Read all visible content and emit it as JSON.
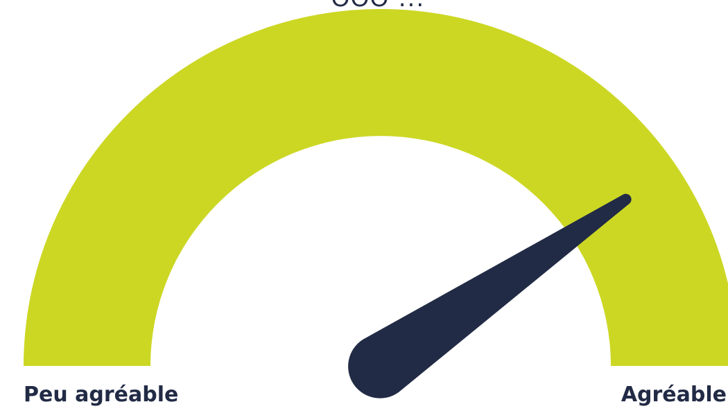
{
  "gauge": {
    "level": 0.81,
    "min_label": "Peu agréable",
    "max_label": "Agréable",
    "top_glyphs": "ƱƱƱ ...",
    "arc_color": "#ccd724",
    "needle_color": "#222b45",
    "background_color": "#ffffff",
    "arc_icon": "gauge-arc",
    "needle_icon": "gauge-needle-icon"
  }
}
